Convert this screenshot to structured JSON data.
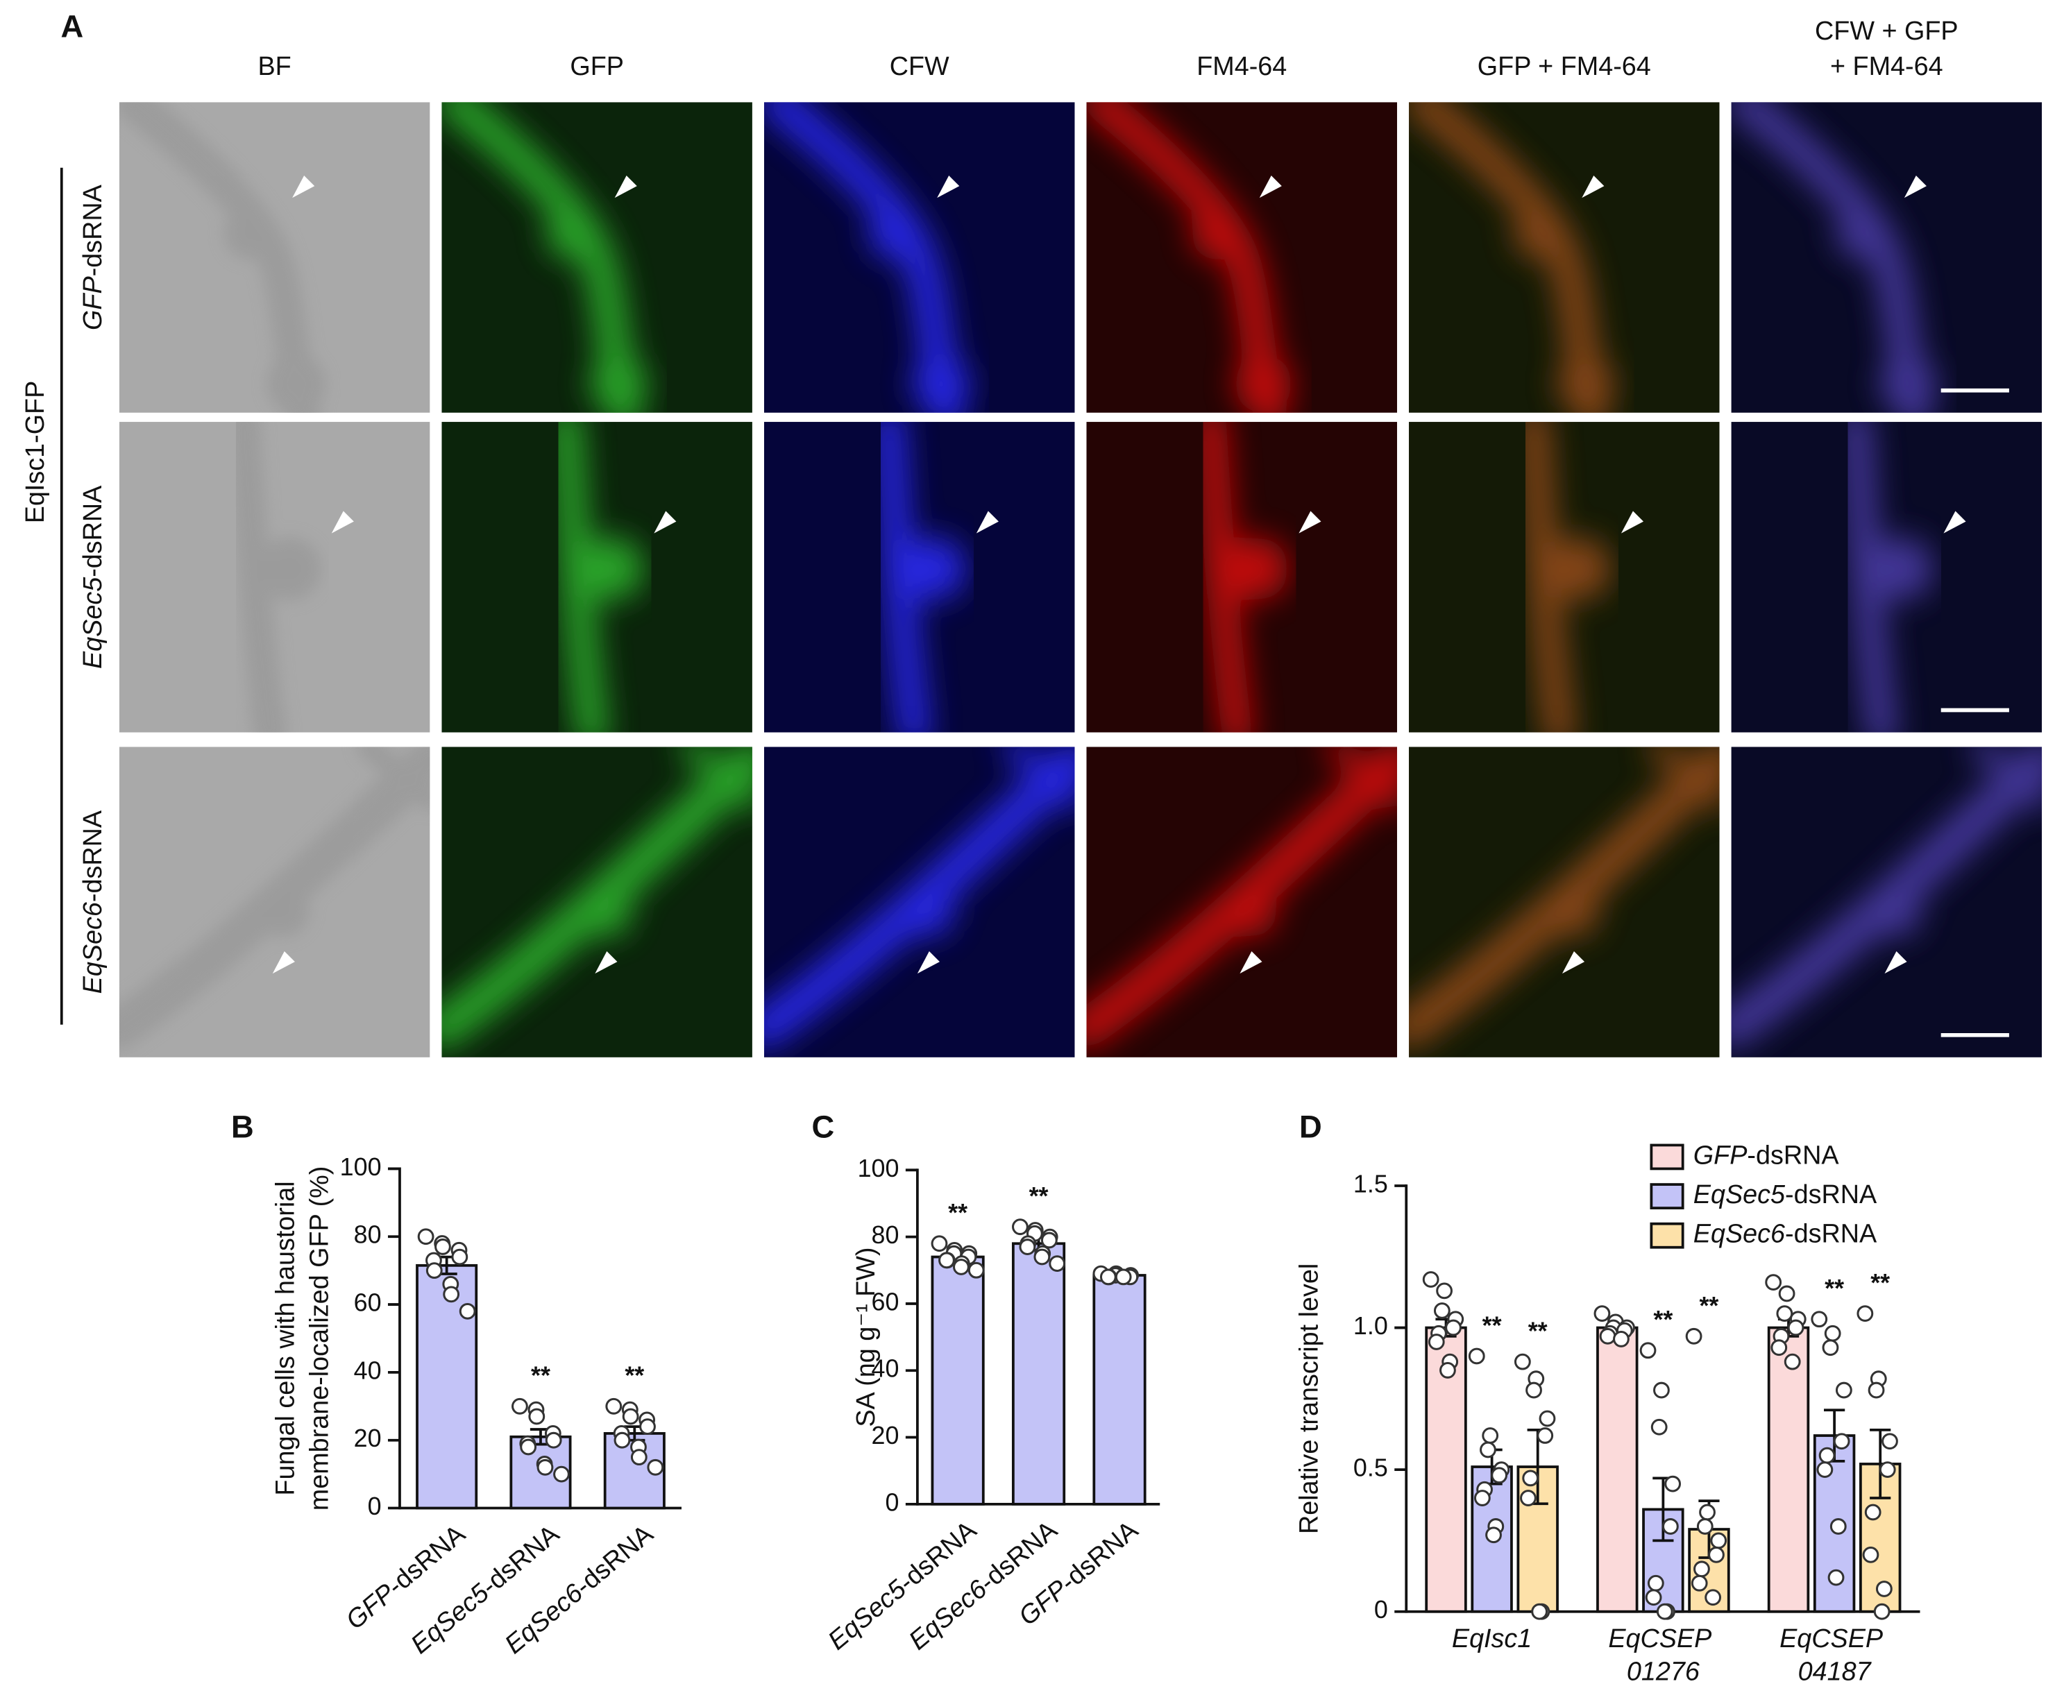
{
  "panel_a": {
    "label": "A",
    "columns": [
      [
        "BF"
      ],
      [
        "GFP"
      ],
      [
        "CFW"
      ],
      [
        "FM4-64"
      ],
      [
        "GFP + FM4-64"
      ],
      [
        "CFW + GFP",
        "+ FM4-64"
      ]
    ],
    "rows": [
      "GFP-dsRNA",
      "EqSec5-dsRNA",
      "EqSec6-dsRNA"
    ],
    "group": "EqIsc1-GFP"
  },
  "chart_data": [
    {
      "type": "bar",
      "label": "B",
      "ylabel": [
        "Fungal cells with haustorial",
        "membrane-localized GFP (%)"
      ],
      "categories": [
        "GFP-dsRNA",
        "EqSec5-dsRNA",
        "EqSec6-dsRNA"
      ],
      "category_style": "italic-prefix",
      "values": [
        71.5,
        21,
        22
      ],
      "errors": [
        2.5,
        2.2,
        2
      ],
      "points": [
        [
          80,
          78,
          77,
          76,
          74,
          73,
          70,
          66,
          63,
          58
        ],
        [
          30,
          29,
          27,
          22,
          20,
          19,
          18,
          13,
          12,
          10
        ],
        [
          30,
          29,
          27,
          26,
          24,
          22,
          20,
          18,
          15,
          12
        ]
      ],
      "significance": [
        null,
        "**",
        "**"
      ],
      "color": "#c3c3f7",
      "ylim": [
        0,
        100
      ],
      "yticks": [
        0,
        20,
        40,
        60,
        80,
        100
      ]
    },
    {
      "type": "bar",
      "label": "C",
      "ylabel": [
        "SA (ng g⁻¹ FW)"
      ],
      "categories": [
        "EqSec5-dsRNA",
        "EqSec6-dsRNA",
        "GFP-dsRNA"
      ],
      "category_style": "italic-prefix",
      "values": [
        74,
        78,
        68.5
      ],
      "errors": [
        1.2,
        2,
        0.5
      ],
      "points": [
        [
          78,
          76,
          75,
          75,
          74,
          73,
          73,
          72,
          71,
          70
        ],
        [
          83,
          82,
          81,
          80,
          79,
          78,
          77,
          75,
          74,
          72
        ],
        [
          69,
          69,
          68.5,
          68.5,
          68,
          68,
          68,
          68
        ]
      ],
      "significance": [
        "**",
        "**",
        null
      ],
      "color": "#c3c3f7",
      "ylim": [
        0,
        100
      ],
      "yticks": [
        0,
        20,
        40,
        60,
        80,
        100
      ]
    },
    {
      "type": "bar",
      "label": "D",
      "ylabel": [
        "Relative transcript level"
      ],
      "categories": [
        "EqIsc1",
        "EqCSEP 01276",
        "EqCSEP 04187"
      ],
      "category_style": "italic",
      "legend": "top-right",
      "legend_style": "italic-prefix",
      "series": [
        {
          "name": "GFP-dsRNA",
          "color": "#fbdada",
          "values": [
            1.0,
            1.0,
            1.0
          ],
          "errors": [
            0.03,
            0.01,
            0.03
          ],
          "points": [
            [
              1.17,
              1.13,
              1.06,
              1.03,
              1.0,
              0.98,
              0.95,
              0.88,
              0.85
            ],
            [
              1.05,
              1.02,
              1.0,
              1.0,
              0.99,
              0.98,
              0.97,
              0.96
            ],
            [
              1.16,
              1.12,
              1.05,
              1.03,
              1.0,
              0.97,
              0.93,
              0.88
            ]
          ]
        },
        {
          "name": "EqSec5-dsRNA",
          "color": "#c3c3f7",
          "values": [
            0.51,
            0.36,
            0.62
          ],
          "errors": [
            0.06,
            0.11,
            0.09
          ],
          "points": [
            [
              0.9,
              0.62,
              0.57,
              0.5,
              0.48,
              0.43,
              0.4,
              0.3,
              0.27
            ],
            [
              0.92,
              0.78,
              0.65,
              0.45,
              0.3,
              0.1,
              0.05,
              0.0,
              0.0
            ],
            [
              1.03,
              0.98,
              0.93,
              0.78,
              0.6,
              0.55,
              0.5,
              0.3,
              0.12
            ]
          ],
          "significance": [
            "**",
            "**",
            "**"
          ]
        },
        {
          "name": "EqSec6-dsRNA",
          "color": "#fde1a9",
          "values": [
            0.51,
            0.29,
            0.52
          ],
          "errors": [
            0.13,
            0.1,
            0.12
          ],
          "points": [
            [
              0.88,
              0.82,
              0.78,
              0.68,
              0.62,
              0.47,
              0.4,
              0.0,
              0.0
            ],
            [
              0.97,
              0.35,
              0.3,
              0.25,
              0.2,
              0.15,
              0.1,
              0.05
            ],
            [
              1.05,
              0.82,
              0.78,
              0.6,
              0.5,
              0.35,
              0.2,
              0.08,
              0.0
            ]
          ],
          "significance": [
            "**",
            "**",
            "**"
          ]
        }
      ],
      "ylim": [
        0,
        1.5
      ],
      "yticks": [
        0,
        0.5,
        {
          "value": 1,
          "label": "1.0"
        },
        1.5
      ]
    }
  ]
}
